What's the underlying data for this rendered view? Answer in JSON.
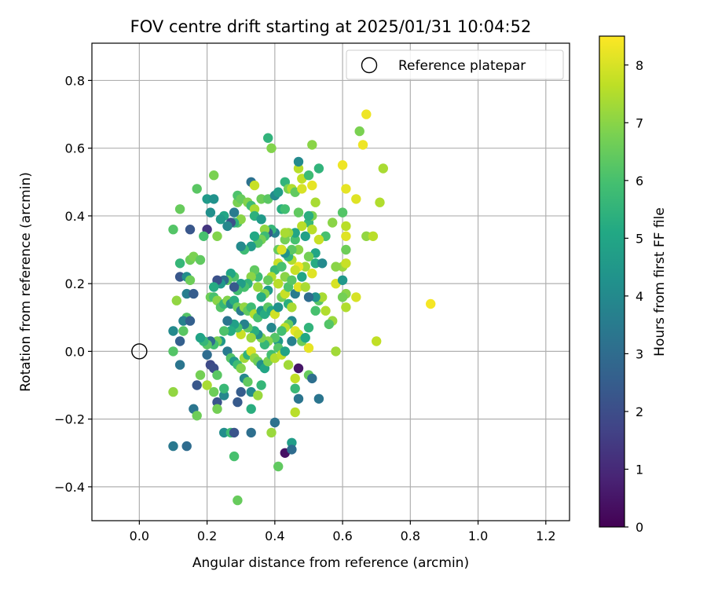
{
  "chart_data": {
    "type": "scatter",
    "title": "FOV centre drift starting at 2025/01/31 10:04:52",
    "xlabel": "Angular distance from reference (arcmin)",
    "ylabel": "Rotation from reference (arcmin)",
    "xlim": [
      -0.14,
      1.27
    ],
    "ylim": [
      -0.5,
      0.91
    ],
    "xticks": [
      0.0,
      0.2,
      0.4,
      0.6,
      0.8,
      1.0,
      1.2
    ],
    "xtick_labels": [
      "0.0",
      "0.2",
      "0.4",
      "0.6",
      "0.8",
      "1.0",
      "1.2"
    ],
    "yticks": [
      -0.4,
      -0.2,
      0.0,
      0.2,
      0.4,
      0.6,
      0.8
    ],
    "ytick_labels": [
      "−0.4",
      "−0.2",
      "0.0",
      "0.2",
      "0.4",
      "0.6",
      "0.8"
    ],
    "grid": true,
    "legend": {
      "placement": "top-right",
      "entries": [
        {
          "label": "Reference platepar",
          "marker": "open-circle"
        }
      ]
    },
    "reference_point": {
      "x": 0.0,
      "y": 0.0
    },
    "colorbar": {
      "label": "Hours from first FF file",
      "range": [
        0,
        8.5
      ],
      "ticks": [
        0,
        1,
        2,
        3,
        4,
        5,
        6,
        7,
        8
      ],
      "tick_labels": [
        "0",
        "1",
        "2",
        "3",
        "4",
        "5",
        "6",
        "7",
        "8"
      ],
      "colormap": "viridis"
    },
    "points": [
      [
        0.17,
        0.48,
        6.3
      ],
      [
        0.22,
        0.52,
        6.8
      ],
      [
        0.2,
        0.45,
        4.6
      ],
      [
        0.22,
        0.45,
        4.3
      ],
      [
        0.12,
        0.42,
        6.5
      ],
      [
        0.1,
        0.36,
        6.2
      ],
      [
        0.15,
        0.36,
        2.3
      ],
      [
        0.2,
        0.36,
        1.3
      ],
      [
        0.19,
        0.34,
        6.0
      ],
      [
        0.21,
        0.41,
        4.2
      ],
      [
        0.23,
        0.34,
        6.9
      ],
      [
        0.12,
        0.26,
        5.6
      ],
      [
        0.15,
        0.27,
        6.6
      ],
      [
        0.16,
        0.28,
        6.8
      ],
      [
        0.18,
        0.27,
        6.4
      ],
      [
        0.12,
        0.22,
        2.3
      ],
      [
        0.14,
        0.22,
        4.1
      ],
      [
        0.15,
        0.21,
        6.6
      ],
      [
        0.14,
        0.17,
        3.6
      ],
      [
        0.16,
        0.17,
        2.5
      ],
      [
        0.11,
        0.15,
        7.1
      ],
      [
        0.14,
        0.1,
        6.2
      ],
      [
        0.13,
        0.09,
        3.7
      ],
      [
        0.15,
        0.09,
        2.6
      ],
      [
        0.1,
        0.06,
        4.0
      ],
      [
        0.12,
        0.03,
        2.6
      ],
      [
        0.13,
        0.06,
        6.3
      ],
      [
        0.1,
        0.0,
        6.2
      ],
      [
        0.12,
        -0.04,
        3.3
      ],
      [
        0.1,
        -0.12,
        7.1
      ],
      [
        0.1,
        -0.28,
        3.4
      ],
      [
        0.14,
        -0.28,
        3.0
      ],
      [
        0.16,
        -0.17,
        3.3
      ],
      [
        0.17,
        -0.19,
        6.6
      ],
      [
        0.17,
        -0.1,
        2.3
      ],
      [
        0.18,
        -0.07,
        6.7
      ],
      [
        0.2,
        -0.1,
        7.4
      ],
      [
        0.2,
        -0.01,
        3.0
      ],
      [
        0.21,
        -0.04,
        1.9
      ],
      [
        0.22,
        -0.05,
        2.0
      ],
      [
        0.23,
        -0.07,
        6.3
      ],
      [
        0.22,
        -0.12,
        6.6
      ],
      [
        0.23,
        -0.15,
        2.2
      ],
      [
        0.23,
        -0.17,
        6.7
      ],
      [
        0.25,
        -0.13,
        3.9
      ],
      [
        0.25,
        -0.11,
        5.7
      ],
      [
        0.25,
        -0.24,
        4.1
      ],
      [
        0.27,
        -0.24,
        5.8
      ],
      [
        0.28,
        -0.24,
        2.2
      ],
      [
        0.28,
        -0.31,
        6.0
      ],
      [
        0.29,
        -0.44,
        6.5
      ],
      [
        0.29,
        -0.15,
        2.4
      ],
      [
        0.3,
        -0.12,
        2.5
      ],
      [
        0.31,
        -0.08,
        3.9
      ],
      [
        0.32,
        -0.09,
        6.4
      ],
      [
        0.33,
        -0.12,
        4.0
      ],
      [
        0.33,
        -0.17,
        5.3
      ],
      [
        0.33,
        -0.24,
        3.1
      ],
      [
        0.35,
        -0.13,
        7.2
      ],
      [
        0.36,
        -0.1,
        5.6
      ],
      [
        0.39,
        -0.24,
        7.2
      ],
      [
        0.4,
        -0.21,
        3.2
      ],
      [
        0.41,
        -0.34,
        6.4
      ],
      [
        0.43,
        -0.3,
        0.4
      ],
      [
        0.45,
        -0.27,
        4.7
      ],
      [
        0.45,
        -0.29,
        3.0
      ],
      [
        0.46,
        -0.18,
        7.6
      ],
      [
        0.46,
        -0.11,
        5.7
      ],
      [
        0.47,
        -0.14,
        3.3
      ],
      [
        0.46,
        -0.08,
        7.7
      ],
      [
        0.47,
        -0.05,
        0.5
      ],
      [
        0.5,
        -0.07,
        6.5
      ],
      [
        0.51,
        -0.08,
        3.1
      ],
      [
        0.53,
        -0.14,
        3.3
      ],
      [
        0.5,
        0.07,
        5.5
      ],
      [
        0.5,
        0.01,
        8.2
      ],
      [
        0.58,
        0.0,
        7.3
      ],
      [
        0.57,
        0.09,
        7.2
      ],
      [
        0.56,
        0.08,
        6.2
      ],
      [
        0.52,
        0.12,
        6.0
      ],
      [
        0.55,
        0.12,
        7.5
      ],
      [
        0.53,
        0.15,
        6.3
      ],
      [
        0.54,
        0.16,
        7.4
      ],
      [
        0.52,
        0.16,
        4.3
      ],
      [
        0.5,
        0.16,
        3.0
      ],
      [
        0.58,
        0.2,
        8.0
      ],
      [
        0.6,
        0.21,
        4.5
      ],
      [
        0.61,
        0.17,
        7.0
      ],
      [
        0.6,
        0.16,
        6.7
      ],
      [
        0.61,
        0.13,
        7.5
      ],
      [
        0.64,
        0.16,
        8.0
      ],
      [
        0.6,
        0.25,
        7.2
      ],
      [
        0.61,
        0.26,
        7.8
      ],
      [
        0.58,
        0.25,
        7.0
      ],
      [
        0.61,
        0.3,
        6.6
      ],
      [
        0.61,
        0.34,
        8.1
      ],
      [
        0.61,
        0.37,
        7.6
      ],
      [
        0.6,
        0.41,
        6.2
      ],
      [
        0.61,
        0.48,
        8.2
      ],
      [
        0.64,
        0.45,
        8.1
      ],
      [
        0.6,
        0.55,
        8.3
      ],
      [
        0.65,
        0.65,
        6.8
      ],
      [
        0.66,
        0.61,
        8.3
      ],
      [
        0.67,
        0.7,
        8.3
      ],
      [
        0.67,
        0.34,
        7.1
      ],
      [
        0.69,
        0.34,
        7.6
      ],
      [
        0.71,
        0.44,
        7.5
      ],
      [
        0.72,
        0.54,
        7.4
      ],
      [
        0.7,
        0.03,
        7.7
      ],
      [
        0.86,
        0.14,
        8.4
      ],
      [
        0.57,
        0.38,
        7.0
      ],
      [
        0.55,
        0.34,
        6.0
      ],
      [
        0.53,
        0.33,
        7.8
      ],
      [
        0.52,
        0.29,
        5.0
      ],
      [
        0.5,
        0.28,
        6.7
      ],
      [
        0.52,
        0.26,
        5.2
      ],
      [
        0.54,
        0.26,
        4.0
      ],
      [
        0.51,
        0.23,
        8.1
      ],
      [
        0.49,
        0.25,
        7.3
      ],
      [
        0.47,
        0.25,
        8.3
      ],
      [
        0.45,
        0.27,
        7.5
      ],
      [
        0.44,
        0.28,
        5.5
      ],
      [
        0.46,
        0.33,
        6.0
      ],
      [
        0.47,
        0.3,
        7.0
      ],
      [
        0.49,
        0.34,
        4.8
      ],
      [
        0.5,
        0.38,
        5.7
      ],
      [
        0.51,
        0.36,
        7.6
      ],
      [
        0.51,
        0.4,
        6.8
      ],
      [
        0.52,
        0.44,
        7.4
      ],
      [
        0.5,
        0.4,
        5.3
      ],
      [
        0.48,
        0.37,
        7.6
      ],
      [
        0.47,
        0.41,
        6.4
      ],
      [
        0.46,
        0.35,
        5.0
      ],
      [
        0.45,
        0.3,
        6.3
      ],
      [
        0.44,
        0.35,
        7.2
      ],
      [
        0.43,
        0.33,
        6.7
      ],
      [
        0.43,
        0.29,
        4.3
      ],
      [
        0.42,
        0.3,
        5.8
      ],
      [
        0.41,
        0.3,
        6.5
      ],
      [
        0.4,
        0.35,
        3.7
      ],
      [
        0.39,
        0.36,
        5.6
      ],
      [
        0.38,
        0.35,
        2.4
      ],
      [
        0.37,
        0.36,
        7.1
      ],
      [
        0.37,
        0.34,
        5.8
      ],
      [
        0.36,
        0.33,
        6.7
      ],
      [
        0.35,
        0.32,
        6.2
      ],
      [
        0.34,
        0.34,
        5.1
      ],
      [
        0.33,
        0.31,
        4.6
      ],
      [
        0.31,
        0.3,
        5.8
      ],
      [
        0.3,
        0.31,
        4.0
      ],
      [
        0.29,
        0.38,
        6.1
      ],
      [
        0.3,
        0.39,
        7.0
      ],
      [
        0.28,
        0.38,
        5.4
      ],
      [
        0.27,
        0.38,
        2.1
      ],
      [
        0.26,
        0.37,
        3.9
      ],
      [
        0.25,
        0.4,
        5.0
      ],
      [
        0.24,
        0.39,
        4.6
      ],
      [
        0.28,
        0.41,
        3.5
      ],
      [
        0.29,
        0.44,
        6.8
      ],
      [
        0.29,
        0.46,
        6.1
      ],
      [
        0.3,
        0.45,
        6.5
      ],
      [
        0.32,
        0.44,
        6.9
      ],
      [
        0.33,
        0.43,
        5.8
      ],
      [
        0.34,
        0.42,
        7.4
      ],
      [
        0.34,
        0.4,
        5.4
      ],
      [
        0.33,
        0.5,
        3.2
      ],
      [
        0.34,
        0.49,
        7.8
      ],
      [
        0.36,
        0.45,
        6.6
      ],
      [
        0.36,
        0.39,
        4.6
      ],
      [
        0.38,
        0.45,
        6.3
      ],
      [
        0.38,
        0.63,
        5.5
      ],
      [
        0.39,
        0.6,
        6.9
      ],
      [
        0.4,
        0.46,
        4.0
      ],
      [
        0.41,
        0.47,
        4.7
      ],
      [
        0.42,
        0.42,
        5.3
      ],
      [
        0.43,
        0.42,
        5.9
      ],
      [
        0.43,
        0.5,
        5.5
      ],
      [
        0.44,
        0.48,
        6.8
      ],
      [
        0.45,
        0.48,
        7.5
      ],
      [
        0.46,
        0.47,
        6.4
      ],
      [
        0.47,
        0.54,
        7.6
      ],
      [
        0.47,
        0.56,
        4.0
      ],
      [
        0.48,
        0.51,
        7.7
      ],
      [
        0.48,
        0.48,
        8.0
      ],
      [
        0.5,
        0.52,
        5.8
      ],
      [
        0.51,
        0.49,
        8.2
      ],
      [
        0.53,
        0.54,
        5.5
      ],
      [
        0.51,
        0.61,
        7.0
      ],
      [
        0.43,
        0.35,
        7.4
      ],
      [
        0.42,
        0.3,
        8.0
      ],
      [
        0.41,
        0.26,
        7.8
      ],
      [
        0.4,
        0.24,
        5.7
      ],
      [
        0.39,
        0.22,
        7.5
      ],
      [
        0.38,
        0.21,
        6.5
      ],
      [
        0.38,
        0.18,
        4.6
      ],
      [
        0.37,
        0.17,
        6.9
      ],
      [
        0.36,
        0.16,
        5.2
      ],
      [
        0.35,
        0.19,
        7.2
      ],
      [
        0.35,
        0.22,
        5.8
      ],
      [
        0.34,
        0.24,
        6.4
      ],
      [
        0.33,
        0.22,
        7.0
      ],
      [
        0.32,
        0.2,
        5.5
      ],
      [
        0.31,
        0.19,
        6.0
      ],
      [
        0.3,
        0.2,
        4.7
      ],
      [
        0.29,
        0.18,
        5.9
      ],
      [
        0.28,
        0.19,
        2.4
      ],
      [
        0.28,
        0.22,
        6.1
      ],
      [
        0.27,
        0.23,
        5.0
      ],
      [
        0.26,
        0.21,
        6.4
      ],
      [
        0.25,
        0.21,
        3.0
      ],
      [
        0.24,
        0.2,
        4.5
      ],
      [
        0.23,
        0.21,
        2.1
      ],
      [
        0.22,
        0.19,
        5.2
      ],
      [
        0.21,
        0.16,
        6.6
      ],
      [
        0.22,
        0.16,
        6.0
      ],
      [
        0.23,
        0.15,
        7.0
      ],
      [
        0.24,
        0.13,
        6.2
      ],
      [
        0.25,
        0.14,
        5.6
      ],
      [
        0.26,
        0.15,
        6.9
      ],
      [
        0.27,
        0.14,
        4.0
      ],
      [
        0.28,
        0.15,
        5.3
      ],
      [
        0.29,
        0.13,
        6.5
      ],
      [
        0.3,
        0.12,
        3.5
      ],
      [
        0.31,
        0.13,
        7.1
      ],
      [
        0.32,
        0.12,
        6.4
      ],
      [
        0.33,
        0.13,
        5.8
      ],
      [
        0.34,
        0.11,
        7.5
      ],
      [
        0.35,
        0.1,
        6.0
      ],
      [
        0.36,
        0.12,
        4.4
      ],
      [
        0.37,
        0.11,
        5.2
      ],
      [
        0.38,
        0.13,
        6.3
      ],
      [
        0.39,
        0.12,
        5.0
      ],
      [
        0.4,
        0.11,
        7.9
      ],
      [
        0.41,
        0.13,
        4.3
      ],
      [
        0.42,
        0.16,
        6.7
      ],
      [
        0.43,
        0.17,
        7.8
      ],
      [
        0.44,
        0.19,
        6.1
      ],
      [
        0.44,
        0.14,
        5.3
      ],
      [
        0.45,
        0.13,
        7.4
      ],
      [
        0.46,
        0.17,
        3.5
      ],
      [
        0.45,
        0.09,
        4.0
      ],
      [
        0.44,
        0.08,
        6.5
      ],
      [
        0.43,
        0.07,
        7.6
      ],
      [
        0.42,
        0.06,
        5.9
      ],
      [
        0.41,
        0.03,
        4.6
      ],
      [
        0.4,
        0.04,
        6.2
      ],
      [
        0.39,
        0.07,
        3.9
      ],
      [
        0.38,
        0.03,
        7.0
      ],
      [
        0.37,
        0.02,
        5.6
      ],
      [
        0.36,
        0.04,
        6.8
      ],
      [
        0.35,
        0.05,
        4.2
      ],
      [
        0.34,
        0.06,
        5.3
      ],
      [
        0.33,
        0.04,
        7.2
      ],
      [
        0.32,
        0.07,
        6.4
      ],
      [
        0.31,
        0.08,
        3.7
      ],
      [
        0.3,
        0.05,
        7.8
      ],
      [
        0.29,
        0.07,
        6.0
      ],
      [
        0.28,
        0.08,
        4.8
      ],
      [
        0.27,
        0.06,
        5.2
      ],
      [
        0.26,
        0.09,
        3.3
      ],
      [
        0.25,
        0.06,
        6.1
      ],
      [
        0.24,
        0.03,
        4.5
      ],
      [
        0.23,
        0.03,
        6.7
      ],
      [
        0.22,
        0.02,
        5.9
      ],
      [
        0.21,
        0.03,
        3.0
      ],
      [
        0.2,
        0.02,
        6.3
      ],
      [
        0.19,
        0.03,
        5.6
      ],
      [
        0.18,
        0.04,
        4.9
      ],
      [
        0.26,
        0.0,
        3.5
      ],
      [
        0.27,
        -0.02,
        6.2
      ],
      [
        0.28,
        -0.03,
        4.6
      ],
      [
        0.29,
        -0.04,
        5.8
      ],
      [
        0.3,
        -0.05,
        6.9
      ],
      [
        0.31,
        -0.02,
        7.3
      ],
      [
        0.32,
        -0.01,
        5.4
      ],
      [
        0.33,
        0.0,
        8.0
      ],
      [
        0.34,
        -0.02,
        7.0
      ],
      [
        0.35,
        -0.03,
        6.6
      ],
      [
        0.36,
        -0.04,
        4.2
      ],
      [
        0.37,
        -0.05,
        5.0
      ],
      [
        0.38,
        -0.03,
        6.8
      ],
      [
        0.39,
        -0.01,
        5.9
      ],
      [
        0.4,
        -0.02,
        7.5
      ],
      [
        0.41,
        0.01,
        6.2
      ],
      [
        0.42,
        -0.01,
        7.7
      ],
      [
        0.43,
        0.0,
        4.9
      ],
      [
        0.44,
        -0.04,
        7.3
      ],
      [
        0.45,
        0.03,
        3.7
      ],
      [
        0.46,
        0.06,
        8.2
      ],
      [
        0.47,
        0.05,
        7.9
      ],
      [
        0.48,
        0.03,
        6.6
      ],
      [
        0.49,
        0.04,
        5.1
      ],
      [
        0.43,
        0.22,
        7.0
      ],
      [
        0.42,
        0.25,
        6.0
      ],
      [
        0.41,
        0.2,
        7.6
      ],
      [
        0.45,
        0.21,
        6.3
      ],
      [
        0.47,
        0.19,
        8.1
      ],
      [
        0.49,
        0.19,
        7.4
      ],
      [
        0.48,
        0.22,
        5.0
      ],
      [
        0.46,
        0.24,
        7.8
      ]
    ]
  }
}
